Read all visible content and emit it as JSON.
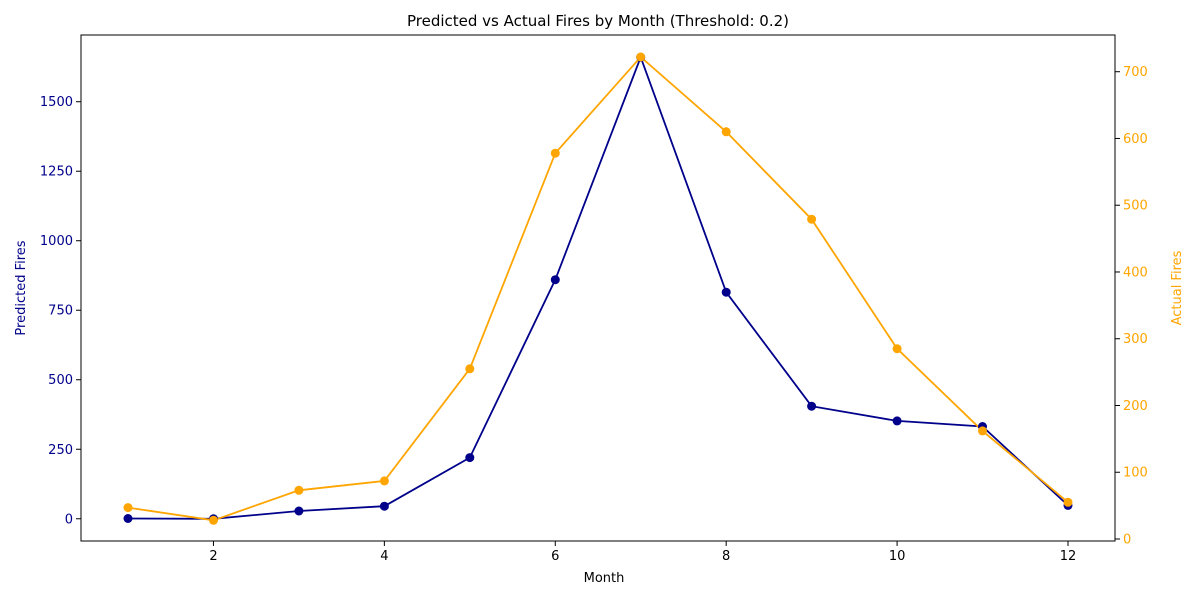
{
  "chart_data": {
    "type": "line",
    "title": "Predicted vs Actual Fires by Month (Threshold: 0.2)",
    "xlabel": "Month",
    "x": [
      1,
      2,
      3,
      4,
      5,
      6,
      7,
      8,
      9,
      10,
      11,
      12
    ],
    "xlim": [
      0.45,
      12.55
    ],
    "xticks": [
      2,
      4,
      6,
      8,
      10,
      12
    ],
    "left_axis": {
      "label": "Predicted Fires",
      "color": "#00008b",
      "ylim": [
        -80,
        1740
      ],
      "ticks": [
        0,
        250,
        500,
        750,
        1000,
        1250,
        1500
      ]
    },
    "right_axis": {
      "label": "Actual Fires",
      "color": "#ffa500",
      "ylim": [
        -3,
        755
      ],
      "ticks": [
        0,
        100,
        200,
        300,
        400,
        500,
        600,
        700
      ]
    },
    "series": [
      {
        "axis": "left",
        "color": "#00008b",
        "values": [
          1,
          0,
          28,
          45,
          220,
          860,
          1660,
          815,
          405,
          352,
          332,
          48
        ]
      },
      {
        "axis": "right",
        "color": "#ffa500",
        "values": [
          47,
          28,
          73,
          87,
          255,
          578,
          722,
          610,
          479,
          285,
          162,
          55
        ]
      }
    ],
    "grid": false,
    "legend": "none"
  }
}
